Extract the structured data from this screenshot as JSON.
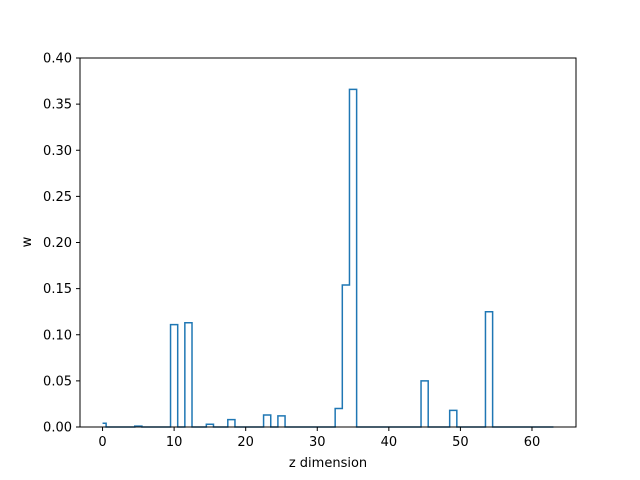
{
  "chart_data": {
    "type": "line",
    "style": "steps-mid",
    "title": "",
    "xlabel": "z dimension",
    "ylabel": "w",
    "xlim": [
      -3.15,
      66.15
    ],
    "ylim": [
      0,
      0.4
    ],
    "grid": false,
    "legend": "none",
    "series_color": "#1f77b4",
    "x_ticks": [
      0,
      10,
      20,
      30,
      40,
      50,
      60
    ],
    "y_ticks": [
      0.0,
      0.05,
      0.1,
      0.15,
      0.2,
      0.25,
      0.3,
      0.35,
      0.4
    ],
    "x_tick_labels": [
      "0",
      "10",
      "20",
      "30",
      "40",
      "50",
      "60"
    ],
    "y_tick_labels": [
      "0.00",
      "0.05",
      "0.10",
      "0.15",
      "0.20",
      "0.25",
      "0.30",
      "0.35",
      "0.40"
    ],
    "x": [
      0,
      1,
      2,
      3,
      4,
      5,
      6,
      7,
      8,
      9,
      10,
      11,
      12,
      13,
      14,
      15,
      16,
      17,
      18,
      19,
      20,
      21,
      22,
      23,
      24,
      25,
      26,
      27,
      28,
      29,
      30,
      31,
      32,
      33,
      34,
      35,
      36,
      37,
      38,
      39,
      40,
      41,
      42,
      43,
      44,
      45,
      46,
      47,
      48,
      49,
      50,
      51,
      52,
      53,
      54,
      55,
      56,
      57,
      58,
      59,
      60,
      61,
      62,
      63
    ],
    "values": [
      0.004,
      0,
      0,
      0,
      0,
      0.001,
      0,
      0,
      0,
      0,
      0.111,
      0,
      0.113,
      0,
      0,
      0.003,
      0,
      0,
      0.008,
      0,
      0,
      0,
      0,
      0.013,
      0,
      0.012,
      0,
      0,
      0,
      0,
      0,
      0,
      0,
      0.02,
      0.154,
      0.366,
      0,
      0,
      0,
      0,
      0,
      0,
      0,
      0,
      0,
      0.05,
      0,
      0,
      0,
      0.018,
      0,
      0,
      0,
      0,
      0.125,
      0,
      0,
      0,
      0,
      0,
      0,
      0,
      0,
      0
    ]
  }
}
